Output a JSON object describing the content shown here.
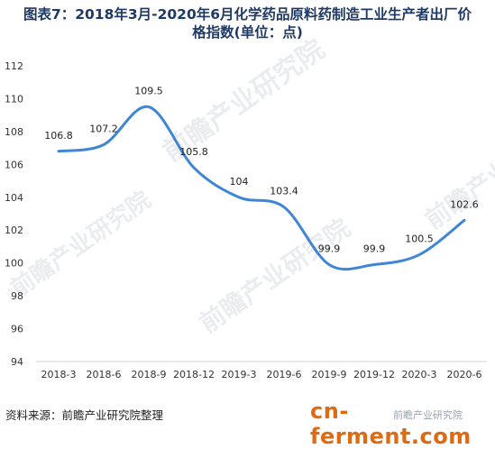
{
  "chart_data": {
    "type": "line",
    "title": "图表7：2018年3月-2020年6月化学药品原料药制造工业生产者出厂价格指数(单位：点)",
    "title_lines": [
      "图表7：2018年3月-2020年6月化学药品原料药制造工业生产者出厂价",
      "格指数(单位：点)"
    ],
    "categories": [
      "2018-3",
      "2018-6",
      "2018-9",
      "2018-12",
      "2019-3",
      "2019-6",
      "2019-9",
      "2019-12",
      "2020-3",
      "2020-6"
    ],
    "values": [
      106.8,
      107.2,
      109.5,
      105.8,
      104,
      103.4,
      99.9,
      99.9,
      100.5,
      102.6
    ],
    "data_labels": [
      "106.8",
      "107.2",
      "109.5",
      "105.8",
      "104",
      "103.4",
      "99.9",
      "99.9",
      "100.5",
      "102.6"
    ],
    "y_ticks": [
      "112",
      "110",
      "108",
      "106",
      "104",
      "102",
      "100",
      "98",
      "96",
      "94"
    ],
    "ylim": [
      94,
      112
    ],
    "xlabel": "",
    "ylabel": "",
    "grid": false,
    "line_color": "#3f86d6"
  },
  "footer": {
    "source": "资料来源：前瞻产业研究院整理",
    "brand": "cn-ferment.com",
    "brand_sub": "前瞻产业研究院"
  },
  "watermark": {
    "text": "前瞻产业研究院"
  }
}
